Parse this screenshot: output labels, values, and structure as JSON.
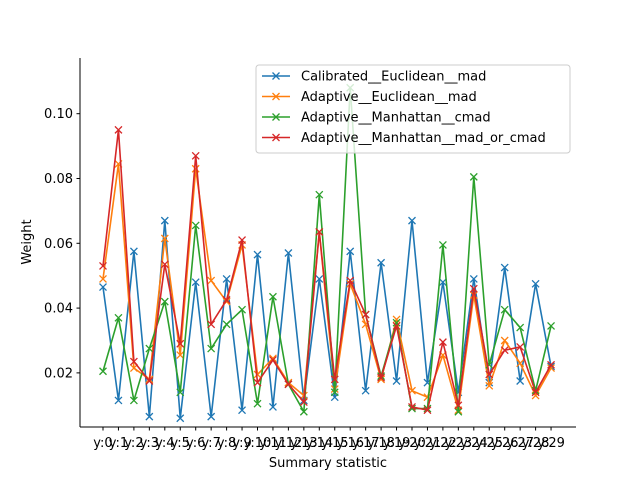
{
  "chart_data": {
    "type": "line",
    "xlabel": "Summary statistic",
    "ylabel": "Weight",
    "categories": [
      "y:0",
      "y:1",
      "y:2",
      "y:3",
      "y:4",
      "y:5",
      "y:6",
      "y:7",
      "y:8",
      "y:9",
      "y:10",
      "y:11",
      "y:12",
      "y:13",
      "y:14",
      "y:15",
      "y:16",
      "y:17",
      "y:18",
      "y:19",
      "y:20",
      "y:21",
      "y:22",
      "y:23",
      "y:24",
      "y:25",
      "y:26",
      "y:27",
      "y:28",
      "y:29"
    ],
    "ylim": [
      0.0033,
      0.115
    ],
    "yticks": [
      0.02,
      0.04,
      0.06,
      0.08,
      0.1
    ],
    "ytick_labels": [
      "0.02",
      "0.04",
      "0.06",
      "0.08",
      "0.10"
    ],
    "grid": false,
    "legend_position": "upper right",
    "marker": "x",
    "series": [
      {
        "name": "Calibrated__Euclidean__mad",
        "color": "#1f77b4",
        "values": [
          0.0465,
          0.0115,
          0.0575,
          0.0065,
          0.067,
          0.006,
          0.048,
          0.0065,
          0.049,
          0.0085,
          0.0565,
          0.0095,
          0.057,
          0.0115,
          0.049,
          0.0125,
          0.0575,
          0.0145,
          0.054,
          0.0175,
          0.067,
          0.017,
          0.048,
          0.014,
          0.049,
          0.017,
          0.0525,
          0.0175,
          0.0475,
          0.022
        ]
      },
      {
        "name": "Adaptive__Euclidean__mad",
        "color": "#ff7f0e",
        "values": [
          0.049,
          0.0845,
          0.0215,
          0.018,
          0.0615,
          0.0255,
          0.083,
          0.0485,
          0.042,
          0.0595,
          0.0195,
          0.0245,
          0.017,
          0.013,
          0.0635,
          0.015,
          0.0475,
          0.035,
          0.018,
          0.0365,
          0.0145,
          0.0125,
          0.0255,
          0.0085,
          0.044,
          0.016,
          0.03,
          0.023,
          0.013,
          0.0215
        ]
      },
      {
        "name": "Adaptive__Manhattan__cmad",
        "color": "#2ca02c",
        "values": [
          0.0205,
          0.037,
          0.0115,
          0.0275,
          0.042,
          0.014,
          0.0655,
          0.0275,
          0.035,
          0.0395,
          0.0105,
          0.0435,
          0.0165,
          0.008,
          0.075,
          0.014,
          0.108,
          0.038,
          0.019,
          0.0355,
          0.009,
          0.009,
          0.0595,
          0.008,
          0.0805,
          0.0225,
          0.0395,
          0.034,
          0.0145,
          0.0345
        ]
      },
      {
        "name": "Adaptive__Manhattan__mad_or_cmad",
        "color": "#d62728",
        "values": [
          0.053,
          0.095,
          0.0235,
          0.0175,
          0.0535,
          0.029,
          0.087,
          0.035,
          0.0425,
          0.061,
          0.017,
          0.024,
          0.0165,
          0.011,
          0.0635,
          0.018,
          0.0485,
          0.038,
          0.0185,
          0.0345,
          0.0095,
          0.0085,
          0.0295,
          0.01,
          0.046,
          0.0195,
          0.027,
          0.028,
          0.014,
          0.0225
        ]
      }
    ]
  }
}
